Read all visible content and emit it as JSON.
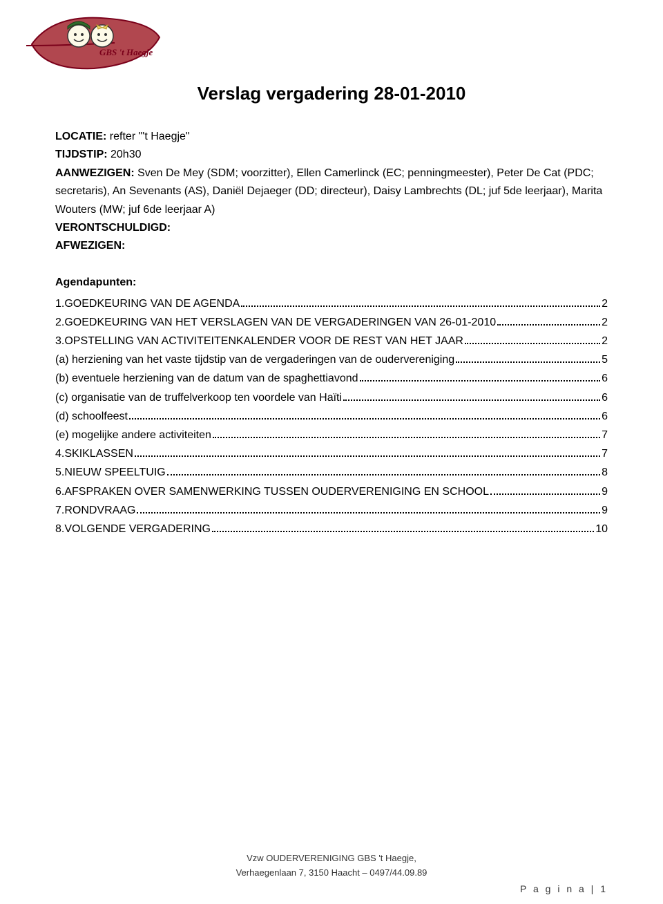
{
  "logo": {
    "school_name": "GBS 't Haegje",
    "leaf_fill": "#b1474f",
    "leaf_edge": "#7a001a",
    "hat_fill": "#2f6b2a",
    "face_fill": "#fdfae8"
  },
  "title": "Verslag vergadering 28-01-2010",
  "meta": {
    "locatie_label": "LOCATIE:",
    "locatie_value": " refter \"'t Haegje\"",
    "tijdstip_label": "TIJDSTIP:",
    "tijdstip_value": " 20h30",
    "aanwezigen_label": "AANWEZIGEN:",
    "aanwezigen_value": " Sven De Mey (SDM; voorzitter), Ellen Camerlinck (EC; penningmeester), Peter De Cat (PDC; secretaris), An Sevenants (AS), Daniël Dejaeger (DD; directeur), Daisy Lambrechts (DL; juf 5de leerjaar), Marita Wouters (MW; juf 6de leerjaar A)",
    "verontschuldigd_label": "VERONTSCHULDIGD:",
    "afwezigen_label": "AFWEZIGEN:"
  },
  "agenda_heading": "Agendapunten:",
  "toc": [
    {
      "text": "1.GOEDKEURING VAN DE AGENDA",
      "page": "2"
    },
    {
      "text": "2.GOEDKEURING VAN HET VERSLAGEN VAN DE VERGADERINGEN VAN 26-01-2010",
      "page": "2"
    },
    {
      "text": "3.OPSTELLING VAN ACTIVITEITENKALENDER VOOR DE REST VAN HET JAAR",
      "page": "2"
    },
    {
      "text": "(a) herziening van het vaste tijdstip van de vergaderingen van de  oudervereniging",
      "page": "5"
    },
    {
      "text": "(b) eventuele herziening van de datum van de spaghettiavond",
      "page": "6"
    },
    {
      "text": "(c) organisatie van de truffelverkoop ten voordele van Haïti",
      "page": "6"
    },
    {
      "text": "(d) schoolfeest",
      "page": "6"
    },
    {
      "text": "(e) mogelijke andere activiteiten",
      "page": "7"
    },
    {
      "text": "4.SKIKLASSEN",
      "page": "7"
    },
    {
      "text": "5.NIEUW SPEELTUIG",
      "page": "8"
    },
    {
      "text": "6.AFSPRAKEN OVER SAMENWERKING TUSSEN OUDERVERENIGING EN SCHOOL",
      "page": "9"
    },
    {
      "text": "7.RONDVRAAG",
      "page": "9"
    },
    {
      "text": "8.VOLGENDE VERGADERING",
      "page": "10"
    }
  ],
  "footer": {
    "line1": "Vzw OUDERVERENIGING GBS 't Haegje,",
    "line2": "Verhaegenlaan 7, 3150 Haacht – 0497/44.09.89"
  },
  "page_number": "P a g i n a  | 1"
}
